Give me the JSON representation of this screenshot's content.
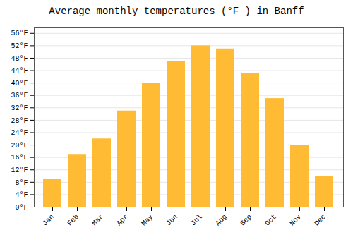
{
  "chart_data": {
    "type": "bar",
    "title": "Average monthly temperatures (°F ) in Banff",
    "categories": [
      "Jan",
      "Feb",
      "Mar",
      "Apr",
      "May",
      "Jun",
      "Jul",
      "Aug",
      "Sep",
      "Oct",
      "Nov",
      "Dec"
    ],
    "values": [
      9,
      17,
      22,
      31,
      40,
      47,
      52,
      51,
      43,
      35,
      20,
      10
    ],
    "color": "#FFBB33",
    "ylim": [
      0,
      58
    ],
    "yticks": [
      {
        "value": 0,
        "label": "0°F"
      },
      {
        "value": 4,
        "label": "4°F"
      },
      {
        "value": 8,
        "label": "8°F"
      },
      {
        "value": 12,
        "label": "12°F"
      },
      {
        "value": 16,
        "label": "16°F"
      },
      {
        "value": 20,
        "label": "20°F"
      },
      {
        "value": 24,
        "label": "24°F"
      },
      {
        "value": 28,
        "label": "28°F"
      },
      {
        "value": 32,
        "label": "32°F"
      },
      {
        "value": 36,
        "label": "36°F"
      },
      {
        "value": 40,
        "label": "40°F"
      },
      {
        "value": 44,
        "label": "44°F"
      },
      {
        "value": 48,
        "label": "48°F"
      },
      {
        "value": 52,
        "label": "52°F"
      },
      {
        "value": 56,
        "label": "56°F"
      }
    ],
    "grid": true
  }
}
